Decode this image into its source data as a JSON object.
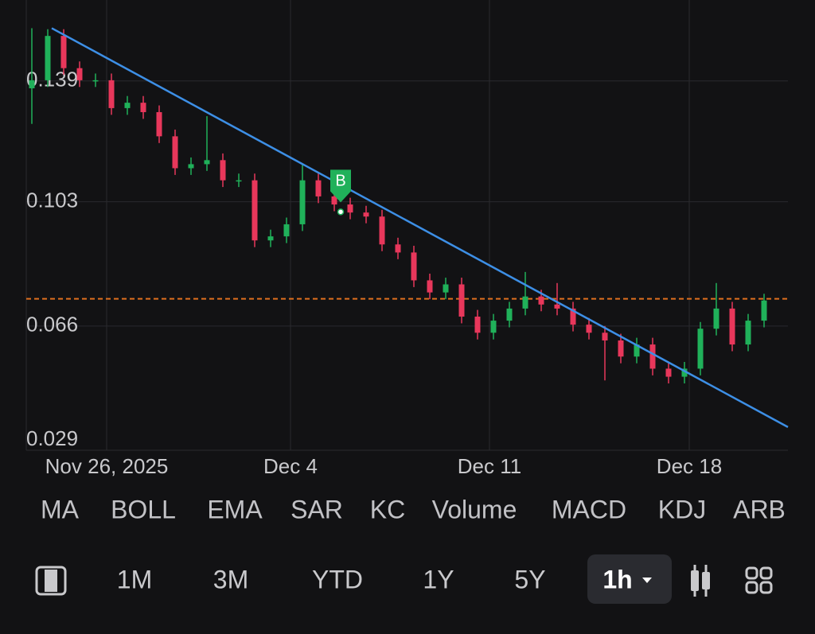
{
  "chart_data": {
    "type": "candlestick",
    "x": [
      0,
      1,
      2,
      3,
      4,
      5,
      6,
      7,
      8,
      9,
      10,
      11,
      12,
      13,
      14,
      15,
      16,
      17,
      18,
      19,
      20,
      21,
      22,
      23,
      24,
      25,
      26,
      27,
      28,
      29,
      30,
      31,
      32,
      33,
      34,
      35,
      36,
      37,
      38,
      39,
      40,
      41,
      42,
      43,
      44,
      45,
      46
    ],
    "open": [
      0.1368,
      0.1392,
      0.1524,
      0.1428,
      0.1392,
      0.1392,
      0.1309,
      0.1325,
      0.1297,
      0.1225,
      0.113,
      0.1142,
      0.1154,
      0.1094,
      0.1094,
      0.0915,
      0.0927,
      0.0963,
      0.1094,
      0.1046,
      0.1022,
      0.0998,
      0.0986,
      0.0903,
      0.0879,
      0.0796,
      0.076,
      0.0784,
      0.0688,
      0.064,
      0.0676,
      0.0712,
      0.0748,
      0.0724,
      0.0712,
      0.0664,
      0.064,
      0.0617,
      0.0569,
      0.0605,
      0.0533,
      0.0509,
      0.0533,
      0.0652,
      0.0712,
      0.0605,
      0.0676
    ],
    "high": [
      0.1547,
      0.1544,
      0.1544,
      0.1448,
      0.1412,
      0.1412,
      0.1345,
      0.1345,
      0.1317,
      0.1245,
      0.1162,
      0.1285,
      0.1174,
      0.1114,
      0.1114,
      0.0947,
      0.0983,
      0.114,
      0.1114,
      0.1066,
      0.1042,
      0.1018,
      0.1006,
      0.0923,
      0.0899,
      0.0816,
      0.0804,
      0.0804,
      0.0708,
      0.0696,
      0.0732,
      0.0821,
      0.0768,
      0.0788,
      0.0732,
      0.0684,
      0.066,
      0.0637,
      0.0625,
      0.0625,
      0.0553,
      0.0553,
      0.0672,
      0.0788,
      0.0732,
      0.0696,
      0.0756
    ],
    "low": [
      0.1262,
      0.1372,
      0.1408,
      0.1372,
      0.1372,
      0.1289,
      0.1289,
      0.1277,
      0.1205,
      0.111,
      0.111,
      0.1122,
      0.1074,
      0.1074,
      0.0895,
      0.0895,
      0.0907,
      0.0943,
      0.1026,
      0.1002,
      0.0978,
      0.0966,
      0.0883,
      0.0859,
      0.0776,
      0.074,
      0.074,
      0.0668,
      0.062,
      0.062,
      0.0656,
      0.0692,
      0.0704,
      0.0692,
      0.0644,
      0.062,
      0.0498,
      0.0549,
      0.0549,
      0.0513,
      0.0489,
      0.0489,
      0.0513,
      0.0632,
      0.0585,
      0.0585,
      0.0656
    ],
    "close": [
      0.1392,
      0.1524,
      0.1428,
      0.1392,
      0.1392,
      0.1309,
      0.1325,
      0.1297,
      0.1225,
      0.113,
      0.1142,
      0.1154,
      0.1094,
      0.1094,
      0.0915,
      0.0927,
      0.0963,
      0.1094,
      0.1046,
      0.1022,
      0.0998,
      0.0986,
      0.0903,
      0.0879,
      0.0796,
      0.076,
      0.0784,
      0.0688,
      0.064,
      0.0676,
      0.0712,
      0.0748,
      0.0724,
      0.0712,
      0.0664,
      0.064,
      0.0617,
      0.0569,
      0.0605,
      0.0533,
      0.0509,
      0.0533,
      0.0652,
      0.0712,
      0.0605,
      0.0676,
      0.0736
    ],
    "up_color": "#20b15a",
    "down_color": "#e8375b",
    "xlim": [
      0,
      46
    ],
    "xticks": [
      {
        "value": 4.7,
        "label": "Nov 26, 2025"
      },
      {
        "value": 16.25,
        "label": "Dec 4"
      },
      {
        "value": 28.75,
        "label": "Dec 11"
      },
      {
        "value": 41.3,
        "label": "Dec 18"
      }
    ],
    "ylim": [
      0.029,
      0.1631
    ],
    "yticks": [
      0.029,
      0.066,
      0.103,
      0.139
    ],
    "grid": true,
    "trendline": {
      "x": [
        1.25,
        47.5
      ],
      "y": [
        0.1547,
        0.0359
      ],
      "color": "#3d8fe6"
    },
    "price_line": {
      "value": 0.0741,
      "color": "#e0701e"
    },
    "marker": {
      "label": "B",
      "x": 19.4,
      "y": 0.1,
      "color": "#20b15a"
    }
  },
  "ui": {
    "indicators": [
      "MA",
      "BOLL",
      "EMA",
      "SAR",
      "KC",
      "Volume",
      "MACD",
      "KDJ",
      "ARB"
    ],
    "ranges": [
      "1M",
      "3M",
      "YTD",
      "1Y",
      "5Y"
    ],
    "interval": "1h"
  }
}
